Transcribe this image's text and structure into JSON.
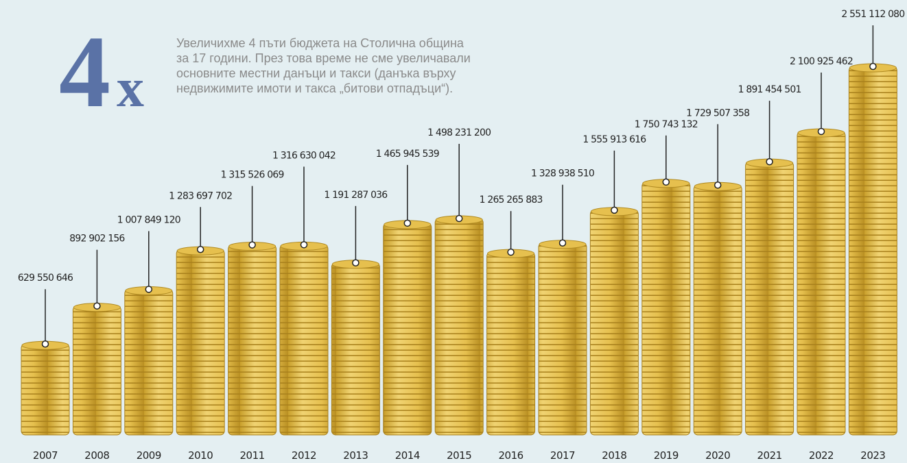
{
  "big_number": "4",
  "big_suffix": "x",
  "intro": [
    "Увеличихме 4 пъти бюджета на Столична община",
    "за 17 години. През това време не сме увеличавали",
    "основните местни данъци и такси (данъка върху",
    "недвижимите имоти и такса „битови отпадъци“)."
  ],
  "chart_data": {
    "type": "coin-stack",
    "categories": [
      "2007",
      "2008",
      "2009",
      "2010",
      "2011",
      "2012",
      "2013",
      "2014",
      "2015",
      "2016",
      "2017",
      "2018",
      "2019",
      "2020",
      "2021",
      "2022",
      "2023"
    ],
    "values": [
      629550646,
      892902156,
      1007849120,
      1283697702,
      1315526069,
      1316630042,
      1191287036,
      1465945539,
      1498231200,
      1265265883,
      1328938510,
      1555913616,
      1750743132,
      1729507358,
      1891454501,
      2100925462,
      2551112080
    ],
    "value_labels": [
      "629 550 646",
      "892 902 156",
      "1 007 849 120",
      "1 283 697 702",
      "1 315 526 069",
      "1 316 630 042",
      "1 191 287 036",
      "1 465 945 539",
      "1 498 231 200",
      "1 265 265 883",
      "1 328 938 510",
      "1 555 913 616",
      "1 750 743 132",
      "1 729 507 358",
      "1 891 454 501",
      "2 100 925 462",
      "2 551 112 080"
    ],
    "color": "#e6c04e"
  }
}
